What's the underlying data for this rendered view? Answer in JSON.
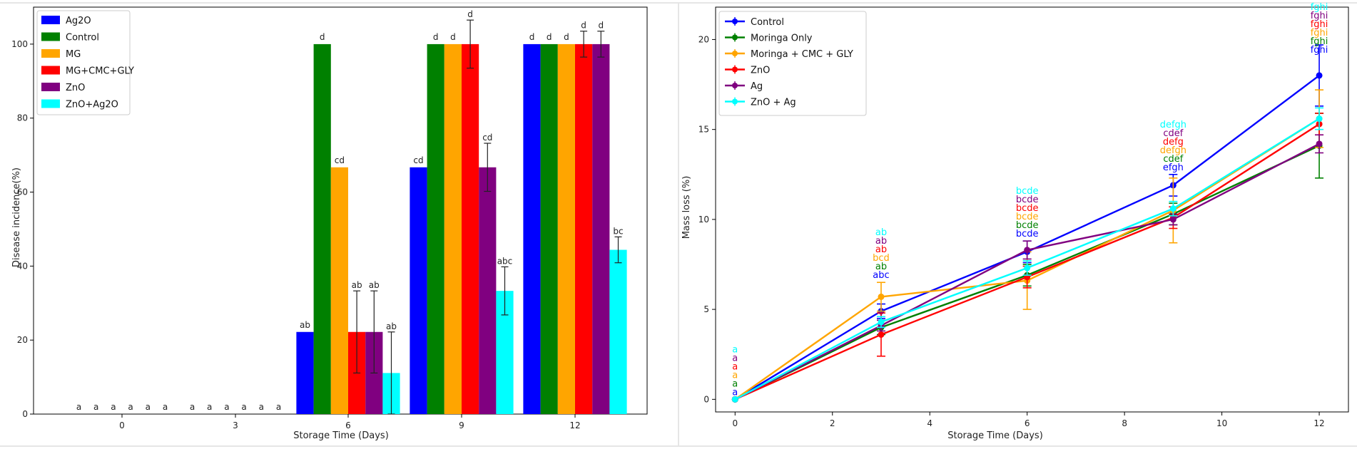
{
  "chart_data": [
    {
      "type": "bar",
      "xlabel": "Storage Time (Days)",
      "ylabel": "Disease incidence(%)",
      "ylim": [
        0,
        110
      ],
      "yticks": [
        0,
        20,
        40,
        60,
        80,
        100
      ],
      "categories": [
        "0",
        "3",
        "6",
        "9",
        "12"
      ],
      "legend_position": "top-left",
      "series": [
        {
          "name": "Ag2O",
          "color": "#0000ff",
          "values": [
            0,
            0,
            22.2,
            66.7,
            100
          ],
          "errors": [
            0,
            0,
            0,
            0,
            0
          ],
          "letters": [
            "a",
            "a",
            "ab",
            "cd",
            "d"
          ]
        },
        {
          "name": "Control",
          "color": "#008000",
          "values": [
            0,
            0,
            100,
            100,
            100
          ],
          "errors": [
            0,
            0,
            0,
            0,
            0
          ],
          "letters": [
            "a",
            "a",
            "d",
            "d",
            "d"
          ]
        },
        {
          "name": "MG",
          "color": "#ffa500",
          "values": [
            0,
            0,
            66.7,
            100,
            100
          ],
          "errors": [
            0,
            0,
            0,
            0,
            0
          ],
          "letters": [
            "a",
            "a",
            "cd",
            "d",
            "d"
          ]
        },
        {
          "name": "MG+CMC+GLY",
          "color": "#ff0000",
          "values": [
            0,
            0,
            22.2,
            100,
            100
          ],
          "errors": [
            0,
            0,
            11.1,
            6.5,
            3.5
          ],
          "letters": [
            "a",
            "a",
            "ab",
            "d",
            "d"
          ]
        },
        {
          "name": "ZnO",
          "color": "#800080",
          "values": [
            0,
            0,
            22.2,
            66.7,
            100
          ],
          "errors": [
            0,
            0,
            11.1,
            6.5,
            3.5
          ],
          "letters": [
            "a",
            "a",
            "ab",
            "cd",
            "d"
          ]
        },
        {
          "name": "ZnO+Ag2O",
          "color": "#00ffff",
          "values": [
            0,
            0,
            11.1,
            33.3,
            44.4
          ],
          "errors": [
            0,
            0,
            11.1,
            6.5,
            3.5
          ],
          "letters": [
            "a",
            "a",
            "ab",
            "abc",
            "bc"
          ]
        }
      ]
    },
    {
      "type": "line",
      "xlabel": "Storage Time (Days)",
      "ylabel": "Mass loss (%)",
      "xlim": [
        -0.4,
        12.6
      ],
      "ylim": [
        -0.7,
        21.8
      ],
      "xticks": [
        0,
        2,
        4,
        6,
        8,
        10,
        12
      ],
      "yticks": [
        0,
        5,
        10,
        15,
        20
      ],
      "x": [
        0,
        3,
        6,
        9,
        12
      ],
      "legend_position": "top-left",
      "series": [
        {
          "name": "Control",
          "color": "#0000ff",
          "values": [
            0,
            4.9,
            8.2,
            11.9,
            18.0
          ],
          "errors": [
            0,
            0.4,
            0.6,
            0.6,
            1.7
          ],
          "letters": [
            "a",
            "abc",
            "bcde",
            "efgh",
            "fghi"
          ]
        },
        {
          "name": "Moringa Only",
          "color": "#008000",
          "values": [
            0,
            4.0,
            6.9,
            10.3,
            14.1
          ],
          "errors": [
            0,
            0.4,
            0.6,
            0.6,
            1.8
          ],
          "letters": [
            "a",
            "ab",
            "bcde",
            "cdef",
            "fghi"
          ]
        },
        {
          "name": "Moringa + CMC + GLY",
          "color": "#ffa500",
          "values": [
            0,
            5.7,
            6.6,
            10.5,
            15.6
          ],
          "errors": [
            0,
            0.8,
            1.6,
            1.8,
            1.6
          ],
          "letters": [
            "a",
            "bcd",
            "bcde",
            "defgh",
            "fghi"
          ]
        },
        {
          "name": "ZnO",
          "color": "#ff0000",
          "values": [
            0,
            3.6,
            6.8,
            10.1,
            15.3
          ],
          "errors": [
            0,
            1.2,
            0.6,
            0.6,
            0.6
          ],
          "letters": [
            "a",
            "ab",
            "bcde",
            "defg",
            "fghi"
          ]
        },
        {
          "name": "Ag",
          "color": "#800080",
          "values": [
            0,
            4.1,
            8.3,
            10.0,
            14.2
          ],
          "errors": [
            0,
            0.3,
            0.5,
            0.3,
            0.5
          ],
          "letters": [
            "a",
            "ab",
            "bcde",
            "cdef",
            "fghi"
          ]
        },
        {
          "name": "ZnO + Ag",
          "color": "#00ffff",
          "values": [
            0,
            4.3,
            7.3,
            10.6,
            15.6
          ],
          "errors": [
            0,
            0.3,
            0.4,
            0.4,
            0.6
          ],
          "letters": [
            "a",
            "ab",
            "bcde",
            "defgh",
            "fghi"
          ]
        }
      ]
    }
  ]
}
